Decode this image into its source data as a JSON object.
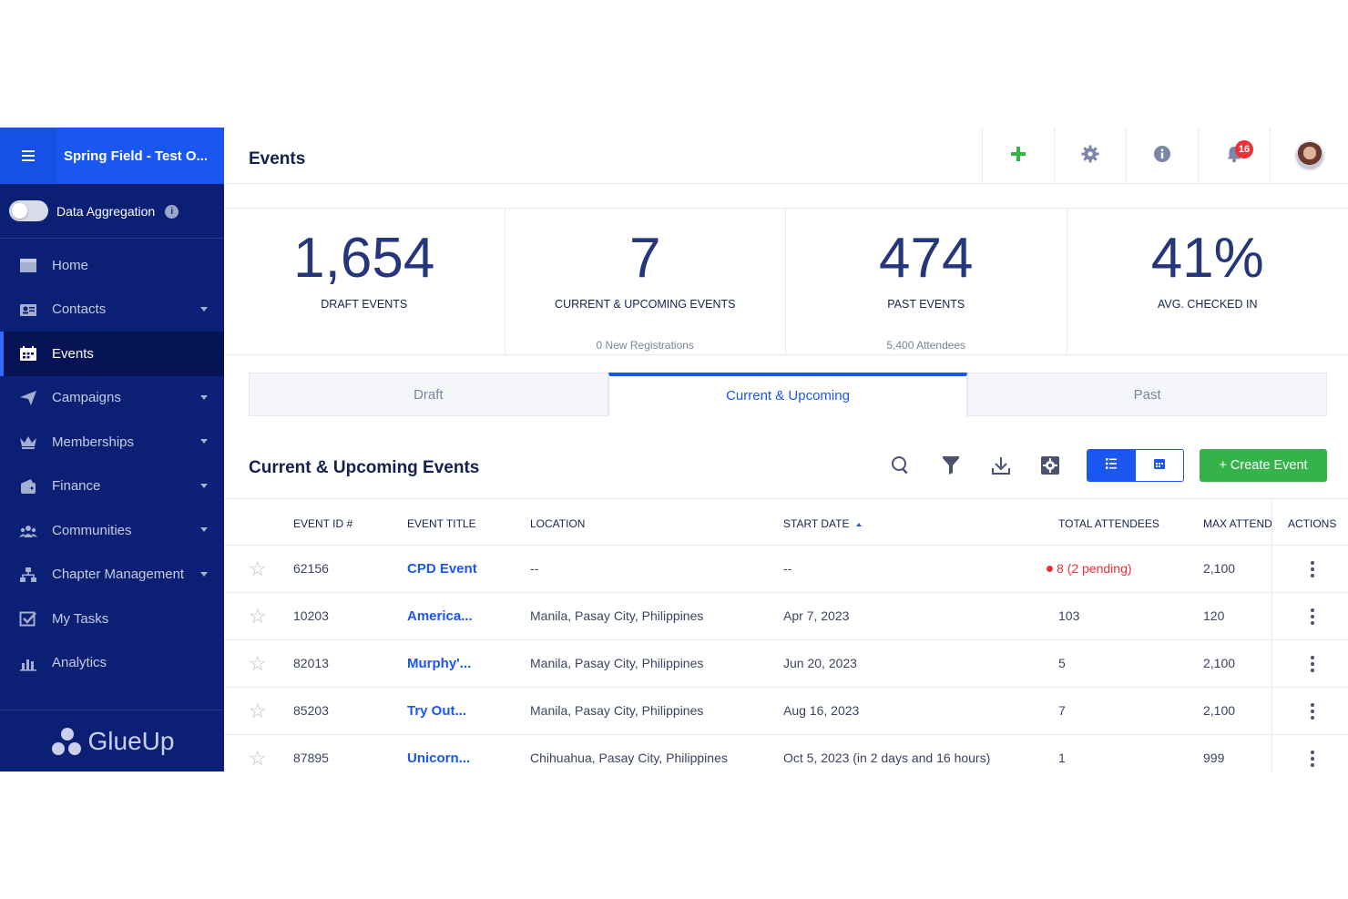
{
  "sidebar": {
    "org_name": "Spring Field - Test O...",
    "aggregation_label": "Data Aggregation",
    "items": [
      {
        "label": "Home"
      },
      {
        "label": "Contacts"
      },
      {
        "label": "Events"
      },
      {
        "label": "Campaigns"
      },
      {
        "label": "Memberships"
      },
      {
        "label": "Finance"
      },
      {
        "label": "Communities"
      },
      {
        "label": "Chapter Management"
      },
      {
        "label": "My Tasks"
      },
      {
        "label": "Analytics"
      }
    ],
    "brand": "GlueUp"
  },
  "header": {
    "title": "Events",
    "notification_count": "16"
  },
  "stats": [
    {
      "value": "1,654",
      "label": "DRAFT EVENTS",
      "sub": ""
    },
    {
      "value": "7",
      "label": "CURRENT & UPCOMING EVENTS",
      "sub": "0 New Registrations"
    },
    {
      "value": "474",
      "label": "PAST EVENTS",
      "sub": "5,400 Attendees"
    },
    {
      "value": "41%",
      "label": "AVG. CHECKED IN",
      "sub": ""
    }
  ],
  "tabs": [
    {
      "label": "Draft"
    },
    {
      "label": "Current & Upcoming"
    },
    {
      "label": "Past"
    }
  ],
  "section": {
    "title": "Current & Upcoming Events",
    "create_label": "+ Create Event"
  },
  "table": {
    "columns": [
      "EVENT ID #",
      "EVENT TITLE",
      "LOCATION",
      "START DATE",
      "TOTAL ATTENDEES",
      "MAX ATTEND",
      "ACTIONS"
    ],
    "rows": [
      {
        "id": "62156",
        "title": "CPD Event",
        "location": "--",
        "start": "--",
        "attendees": "8",
        "pending": "(2 pending)",
        "max": "2,100"
      },
      {
        "id": "10203",
        "title": "America...",
        "location": "Manila, Pasay City, Philippines",
        "start": "Apr 7, 2023",
        "attendees": "103",
        "pending": "",
        "max": "120"
      },
      {
        "id": "82013",
        "title": "Murphy'...",
        "location": "Manila, Pasay City, Philippines",
        "start": "Jun 20, 2023",
        "attendees": "5",
        "pending": "",
        "max": "2,100"
      },
      {
        "id": "85203",
        "title": "Try Out...",
        "location": "Manila, Pasay City, Philippines",
        "start": "Aug 16, 2023",
        "attendees": "7",
        "pending": "",
        "max": "2,100"
      },
      {
        "id": "87895",
        "title": "Unicorn...",
        "location": "Chihuahua, Pasay City, Philippines",
        "start": "Oct 5, 2023 (in 2 days and 16 hours)",
        "attendees": "1",
        "pending": "",
        "max": "999"
      }
    ]
  },
  "colors": {
    "sidebar_bg": "#0b1f75",
    "accent_blue": "#1a56f0",
    "create_green": "#35b34a",
    "badge_red": "#ef2f3a"
  }
}
